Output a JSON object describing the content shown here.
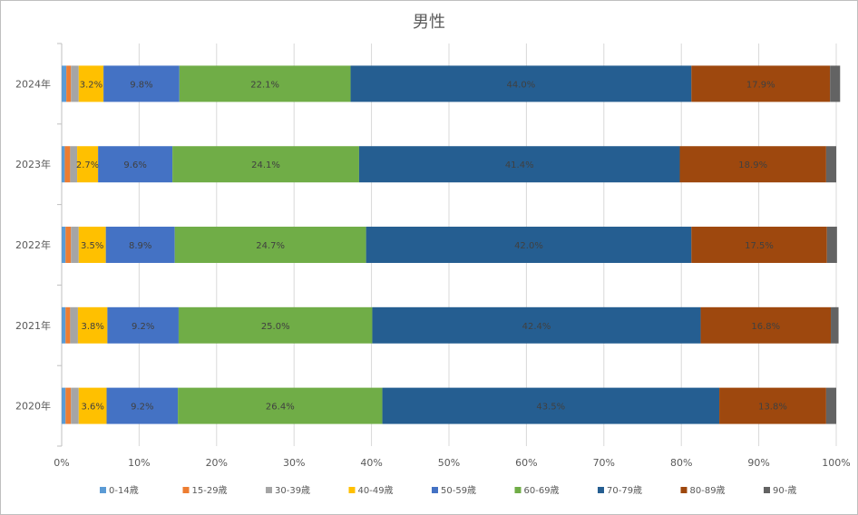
{
  "chart_data": {
    "type": "bar",
    "orientation": "horizontal",
    "stacked": "percent",
    "title": "男性",
    "categories": [
      "2024年",
      "2023年",
      "2022年",
      "2021年",
      "2020年"
    ],
    "xlim": [
      0,
      100
    ],
    "x_ticks": [
      "0%",
      "10%",
      "20%",
      "30%",
      "40%",
      "50%",
      "60%",
      "70%",
      "80%",
      "90%",
      "100%"
    ],
    "grid": true,
    "legend_position": "bottom",
    "series": [
      {
        "name": "0-14歳",
        "color": "#5B9BD5",
        "values": [
          0.6,
          0.4,
          0.5,
          0.5,
          0.5
        ],
        "labels": [
          "",
          "",
          "",
          "",
          ""
        ]
      },
      {
        "name": "15-29歳",
        "color": "#ED7D31",
        "values": [
          0.6,
          0.7,
          0.7,
          0.6,
          0.7
        ],
        "labels": [
          "",
          "",
          "",
          "",
          ""
        ]
      },
      {
        "name": "30-39歳",
        "color": "#A5A5A5",
        "values": [
          1.0,
          0.9,
          1.0,
          1.0,
          1.0
        ],
        "labels": [
          "",
          "",
          "",
          "",
          ""
        ]
      },
      {
        "name": "40-49歳",
        "color": "#FFC000",
        "values": [
          3.2,
          2.7,
          3.5,
          3.8,
          3.6
        ],
        "labels": [
          "3.2%",
          "2.7%",
          "3.5%",
          "3.8%",
          "3.6%"
        ]
      },
      {
        "name": "50-59歳",
        "color": "#4472C4",
        "values": [
          9.8,
          9.6,
          8.9,
          9.2,
          9.2
        ],
        "labels": [
          "9.8%",
          "9.6%",
          "8.9%",
          "9.2%",
          "9.2%"
        ]
      },
      {
        "name": "60-69歳",
        "color": "#70AD47",
        "values": [
          22.1,
          24.1,
          24.7,
          25.0,
          26.4
        ],
        "labels": [
          "22.1%",
          "24.1%",
          "24.7%",
          "25.0%",
          "26.4%"
        ]
      },
      {
        "name": "70-79歳",
        "color": "#255E91",
        "values": [
          44.0,
          41.4,
          42.0,
          42.4,
          43.5
        ],
        "labels": [
          "44.0%",
          "41.4%",
          "42.0%",
          "42.4%",
          "43.5%"
        ]
      },
      {
        "name": "80-89歳",
        "color": "#9E480E",
        "values": [
          17.9,
          18.9,
          17.5,
          16.8,
          13.8
        ],
        "labels": [
          "17.9%",
          "18.9%",
          "17.5%",
          "16.8%",
          "13.8%"
        ]
      },
      {
        "name": "90-歳",
        "color": "#636363",
        "values": [
          1.3,
          1.3,
          1.3,
          1.0,
          1.3
        ],
        "labels": [
          "",
          "",
          "",
          "",
          ""
        ]
      }
    ]
  }
}
